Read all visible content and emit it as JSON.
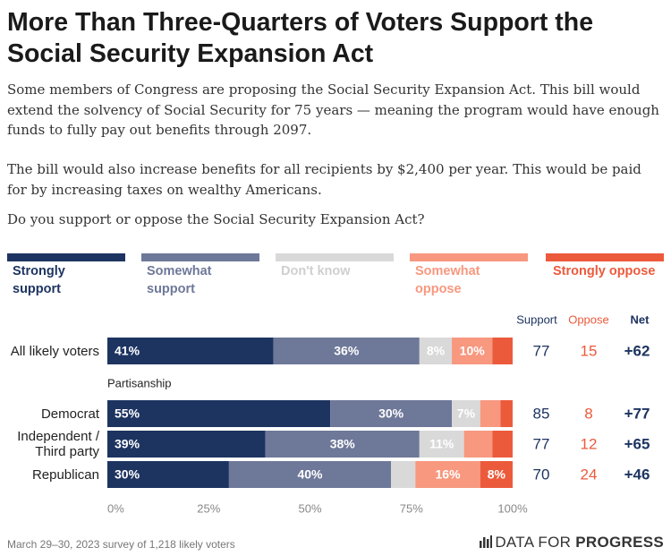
{
  "chart_data": {
    "type": "stacked_bar",
    "title": "More Than Three-Quarters of Voters Support the Social Security Expansion Act",
    "description": [
      "Some members of Congress are proposing the Social Security Expansion Act. This bill would extend the solvency of Social Security for 75 years — meaning the program would have enough funds to fully pay out benefits through 2097.",
      "The bill would also increase benefits for all recipients by $2,400 per year. This would be paid for by increasing taxes on wealthy Americans."
    ],
    "question": "Do you support or oppose the Social Security Expansion Act?",
    "categories": [
      "All likely voters",
      "Democrat",
      "Independent / Third party",
      "Republican"
    ],
    "group_label": "Partisanship",
    "series": [
      {
        "name": "Strongly support",
        "color": "#1d3461",
        "text_color": "#1d3461",
        "values": [
          41,
          55,
          39,
          30
        ],
        "value_labels": [
          "41%",
          "55%",
          "39%",
          "30%"
        ]
      },
      {
        "name": "Somewhat support",
        "color": "#6e7899",
        "text_color": "#6e7899",
        "values": [
          36,
          30,
          38,
          40
        ],
        "value_labels": [
          "36%",
          "30%",
          "38%",
          "40%"
        ]
      },
      {
        "name": "Don't know",
        "color": "#d9d9d9",
        "text_color": "#cfcfcf",
        "values": [
          8,
          7,
          11,
          6
        ],
        "value_labels": [
          "8%",
          "7%",
          "11%",
          null
        ]
      },
      {
        "name": "Somewhat oppose",
        "color": "#f7987f",
        "text_color": "#f7987f",
        "values": [
          10,
          5,
          7,
          16
        ],
        "value_labels": [
          "10%",
          null,
          null,
          "16%"
        ]
      },
      {
        "name": "Strongly oppose",
        "color": "#ec5a3c",
        "text_color": "#ec5a3c",
        "values": [
          5,
          3,
          5,
          8
        ],
        "value_labels": [
          null,
          null,
          null,
          "8%"
        ]
      }
    ],
    "xlim": [
      0,
      100
    ],
    "xticks": [
      {
        "value": 0,
        "label": "0%"
      },
      {
        "value": 25,
        "label": "25%"
      },
      {
        "value": 50,
        "label": "50%"
      },
      {
        "value": 75,
        "label": "75%"
      },
      {
        "value": 100,
        "label": "100%"
      }
    ],
    "summary": {
      "headers": [
        "Support",
        "Oppose",
        "Net"
      ],
      "colors": [
        "#1d3461",
        "#ec5a3c",
        "#1d3461"
      ],
      "support": [
        77,
        85,
        77,
        70
      ],
      "oppose": [
        15,
        8,
        12,
        24
      ],
      "net": [
        {
          "value": 62,
          "label": "+62"
        },
        {
          "value": 77,
          "label": "+77"
        },
        {
          "value": 65,
          "label": "+65"
        },
        {
          "value": 46,
          "label": "+46"
        }
      ]
    },
    "source": "March 29–30, 2023 survey of 1,218 likely voters",
    "logo": [
      "DATA FOR",
      "PROGRESS"
    ]
  }
}
